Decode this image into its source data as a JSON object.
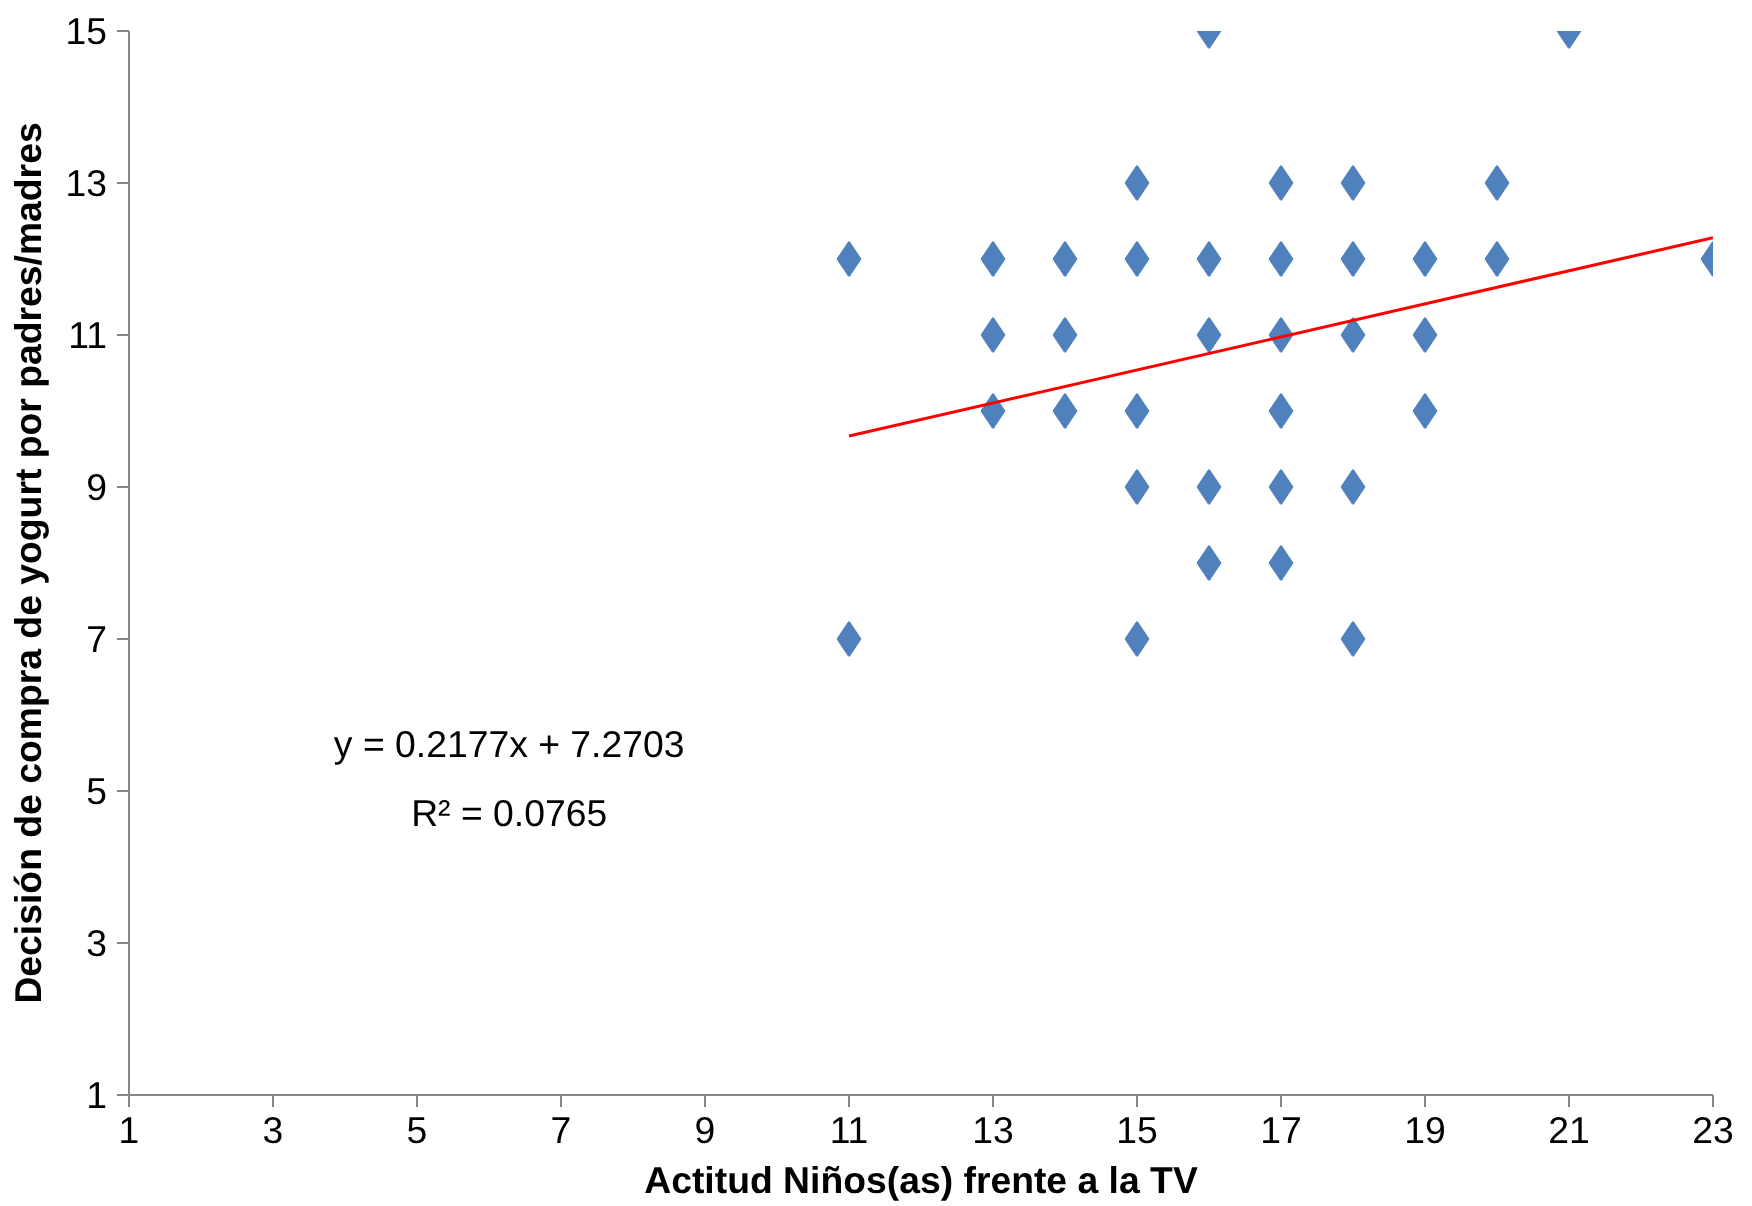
{
  "chart_data": {
    "type": "scatter",
    "xlabel": "Actitud Niños(as) frente a la TV",
    "ylabel": "Decisión de compra de yogurt por padres/madres",
    "xlim": [
      1,
      23
    ],
    "ylim": [
      1,
      15
    ],
    "xticks": [
      1,
      3,
      5,
      7,
      9,
      11,
      13,
      15,
      17,
      19,
      21,
      23
    ],
    "yticks": [
      1,
      3,
      5,
      7,
      9,
      11,
      13,
      15
    ],
    "grid": false,
    "marker": "diamond",
    "series": [
      {
        "color": "#4f81bd",
        "x": [
          11,
          11,
          13,
          13,
          13,
          14,
          14,
          14,
          15,
          15,
          15,
          15,
          15,
          16,
          16,
          16,
          16,
          16,
          17,
          17,
          17,
          17,
          17,
          17,
          18,
          18,
          18,
          18,
          18,
          19,
          19,
          19,
          20,
          20,
          21,
          23
        ],
        "values": [
          12,
          7,
          12,
          11,
          10,
          12,
          11,
          10,
          13,
          12,
          10,
          9,
          7,
          15,
          12,
          11,
          9,
          8,
          13,
          12,
          11,
          10,
          9,
          8,
          13,
          12,
          11,
          9,
          7,
          12,
          11,
          10,
          13,
          12,
          15,
          12
        ]
      },
      {
        "type": "line",
        "color": "#ff0000",
        "marker": "none",
        "line_style": "solid",
        "x": [
          11,
          23
        ],
        "values": [
          9.67,
          12.28
        ]
      }
    ],
    "annotations": [
      "y = 0.2177x + 7.2703",
      "R² = 0.0765"
    ]
  }
}
